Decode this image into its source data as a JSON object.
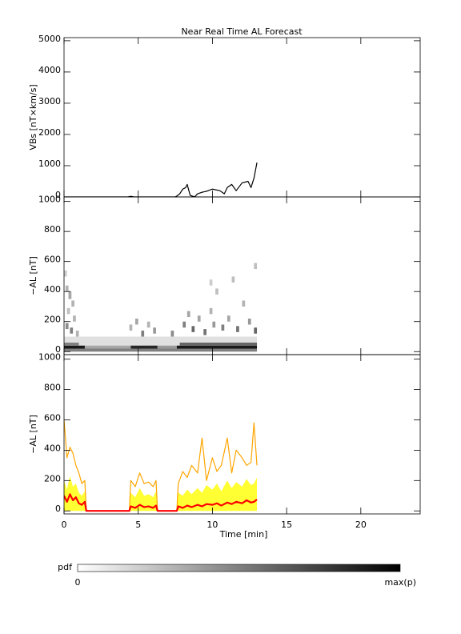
{
  "chart_data": [
    {
      "type": "line",
      "title": "Near Real Time AL Forecast",
      "ylabel": "VBs [nT×km/s]",
      "xlim": [
        0,
        24
      ],
      "xticks": [
        0,
        5,
        10,
        15,
        20
      ],
      "ylim": [
        0,
        5100
      ],
      "yticks": [
        0,
        1000,
        2000,
        3000,
        4000,
        5000
      ],
      "color": "#000000",
      "x": [
        0,
        3.0,
        4.3,
        4.5,
        4.7,
        7.5,
        7.6,
        7.8,
        8.0,
        8.2,
        8.3,
        8.5,
        8.8,
        9.0,
        9.3,
        9.6,
        10.0,
        10.5,
        10.8,
        11.0,
        11.3,
        11.6,
        12.0,
        12.4,
        12.6,
        12.8,
        13.0
      ],
      "values": [
        0,
        0,
        0,
        20,
        0,
        0,
        30,
        100,
        250,
        300,
        400,
        50,
        0,
        100,
        150,
        180,
        250,
        200,
        100,
        300,
        400,
        200,
        450,
        500,
        300,
        600,
        1100
      ]
    },
    {
      "type": "heatmap",
      "ylabel": "−AL [nT]",
      "xlim": [
        0,
        24
      ],
      "xticks": [
        0,
        5,
        10,
        15,
        20
      ],
      "ylim": [
        -20,
        1030
      ],
      "yticks": [
        0,
        200,
        400,
        600,
        800,
        1000
      ],
      "cells": {
        "x0": [
          0,
          0,
          1.4,
          4.5,
          6.3,
          7.6,
          0,
          0,
          7.8,
          0,
          0.1,
          0.3,
          0.5,
          0.2,
          0.6,
          0.1,
          0.4,
          0.8,
          4.4,
          4.8,
          5.2,
          5.6,
          6.0,
          8.0,
          8.3,
          8.6,
          9.0,
          9.4,
          9.8,
          10.0,
          10.2,
          10.6,
          11.0,
          11.3,
          11.6,
          12.0,
          12.4,
          12.8,
          12.8,
          9.8,
          7.2
        ],
        "x1": [
          13,
          1.4,
          4.5,
          6.3,
          7.6,
          13,
          13,
          1,
          13,
          0.2,
          0.3,
          0.5,
          0.7,
          0.4,
          0.8,
          0.3,
          0.6,
          1.0,
          4.6,
          5.0,
          5.4,
          5.8,
          6.2,
          8.2,
          8.5,
          8.8,
          9.2,
          9.6,
          10.0,
          10.2,
          10.4,
          10.8,
          11.2,
          11.5,
          11.8,
          12.2,
          12.6,
          13.0,
          13.0,
          10.0,
          7.4
        ],
        "y0": [
          0,
          20,
          20,
          20,
          20,
          20,
          0,
          40,
          40,
          500,
          400,
          350,
          300,
          250,
          200,
          150,
          120,
          100,
          140,
          180,
          100,
          160,
          120,
          160,
          230,
          130,
          200,
          110,
          250,
          160,
          380,
          140,
          200,
          460,
          130,
          300,
          180,
          550,
          120,
          440,
          100
        ],
        "y1": [
          100,
          40,
          40,
          40,
          40,
          40,
          20,
          60,
          60,
          540,
          440,
          400,
          340,
          290,
          240,
          190,
          160,
          140,
          180,
          220,
          140,
          200,
          160,
          200,
          270,
          170,
          240,
          150,
          290,
          200,
          420,
          180,
          240,
          500,
          170,
          340,
          220,
          590,
          160,
          480,
          140
        ],
        "p": [
          0.12,
          0.9,
          0.35,
          0.85,
          0.4,
          0.9,
          0.5,
          0.5,
          0.6,
          0.2,
          0.3,
          0.35,
          0.3,
          0.25,
          0.3,
          0.45,
          0.5,
          0.3,
          0.3,
          0.35,
          0.5,
          0.3,
          0.4,
          0.5,
          0.35,
          0.6,
          0.35,
          0.55,
          0.3,
          0.4,
          0.25,
          0.5,
          0.35,
          0.25,
          0.55,
          0.3,
          0.4,
          0.25,
          0.6,
          0.2,
          0.45
        ]
      }
    },
    {
      "type": "line",
      "ylabel": "−AL [nT]",
      "xlabel": "Time [min]",
      "xlim": [
        0,
        24
      ],
      "xticks": [
        0,
        5,
        10,
        15,
        20
      ],
      "ylim": [
        -20,
        1030
      ],
      "yticks": [
        0,
        200,
        400,
        600,
        800,
        1000
      ],
      "x": [
        0,
        0.2,
        0.4,
        0.6,
        0.8,
        1.0,
        1.2,
        1.4,
        1.5,
        4.4,
        4.5,
        4.8,
        5.1,
        5.4,
        5.7,
        6.0,
        6.2,
        6.3,
        7.6,
        7.7,
        8.0,
        8.3,
        8.6,
        9.0,
        9.3,
        9.6,
        10.0,
        10.3,
        10.6,
        11.0,
        11.3,
        11.6,
        12.0,
        12.3,
        12.6,
        12.8,
        13.0
      ],
      "series": [
        {
          "color": "#ffff33",
          "style": "area",
          "values": [
            200,
            140,
            230,
            160,
            180,
            120,
            100,
            130,
            0,
            0,
            120,
            90,
            150,
            100,
            110,
            90,
            130,
            0,
            0,
            120,
            100,
            140,
            110,
            150,
            120,
            170,
            140,
            180,
            130,
            200,
            150,
            190,
            160,
            210,
            170,
            180,
            220
          ]
        },
        {
          "color": "#ffa500",
          "style": "line",
          "values": [
            600,
            350,
            420,
            380,
            300,
            250,
            180,
            200,
            0,
            0,
            200,
            160,
            250,
            180,
            190,
            160,
            200,
            0,
            0,
            180,
            260,
            220,
            300,
            250,
            480,
            200,
            350,
            260,
            300,
            480,
            250,
            400,
            350,
            300,
            320,
            580,
            300
          ]
        },
        {
          "color": "#ff0000",
          "style": "line",
          "values": [
            100,
            60,
            110,
            70,
            90,
            50,
            40,
            60,
            0,
            0,
            30,
            20,
            40,
            25,
            30,
            20,
            35,
            0,
            0,
            30,
            20,
            35,
            25,
            40,
            30,
            45,
            40,
            50,
            35,
            55,
            45,
            60,
            50,
            70,
            55,
            60,
            75
          ]
        }
      ]
    }
  ],
  "colorbar": {
    "label": "pdf",
    "min_label": "0",
    "max_label": "max(p)"
  }
}
